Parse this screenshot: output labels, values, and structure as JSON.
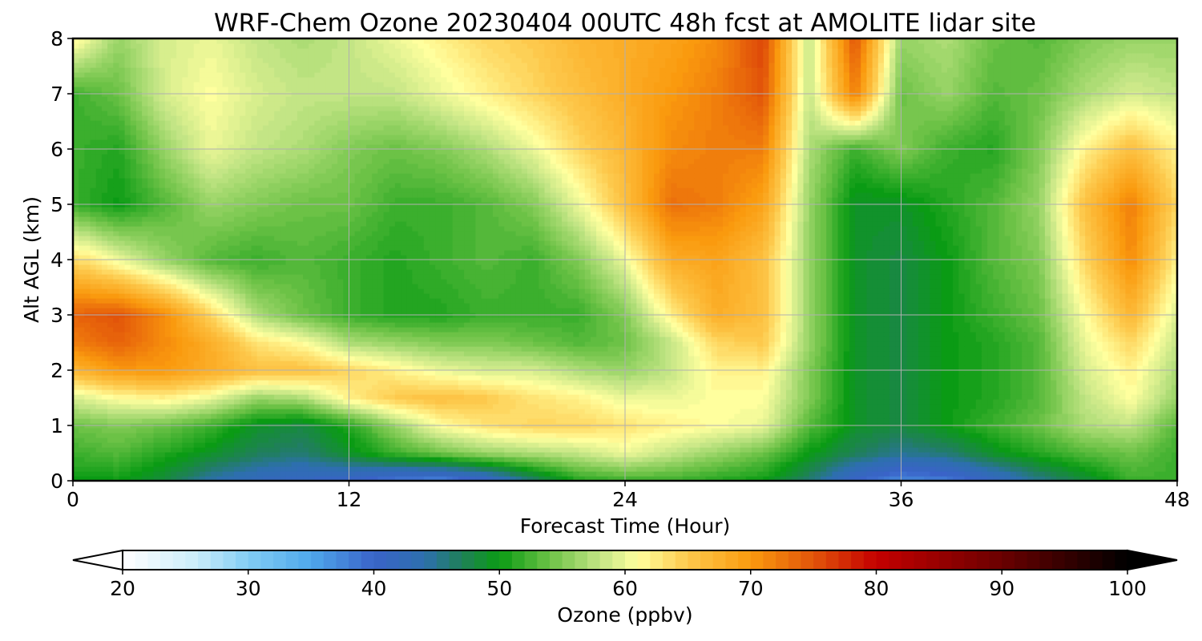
{
  "chart_data": {
    "type": "heatmap",
    "title": "WRF-Chem Ozone  20230404 00UTC 48h fcst at AMOLITE lidar site",
    "xlabel": "Forecast Time (Hour)",
    "ylabel": "Alt AGL (km)",
    "xlim": [
      0,
      48
    ],
    "ylim": [
      0,
      8
    ],
    "xticks": [
      0,
      12,
      24,
      36,
      48
    ],
    "yticks": [
      0,
      1,
      2,
      3,
      4,
      5,
      6,
      7,
      8
    ],
    "grid": true,
    "x_hours": [
      0,
      2,
      4,
      6,
      8,
      10,
      12,
      14,
      16,
      18,
      20,
      22,
      24,
      26,
      28,
      30,
      32,
      34,
      36,
      38,
      40,
      42,
      44,
      46,
      48
    ],
    "y_km": [
      0,
      0.5,
      1,
      1.5,
      2,
      2.5,
      3,
      4,
      5,
      6,
      7,
      8
    ],
    "ozone_ppbv": [
      [
        50,
        50,
        48,
        44,
        42,
        41,
        40,
        38,
        37,
        40,
        46,
        51,
        52,
        52,
        51,
        50,
        46,
        40,
        37,
        38,
        41,
        45,
        48,
        52,
        52
      ],
      [
        52,
        53,
        51,
        49,
        47,
        46,
        49,
        52,
        54,
        56,
        57,
        58,
        60,
        58,
        56,
        54,
        50,
        47,
        45,
        46,
        49,
        51,
        53,
        54,
        52
      ],
      [
        54,
        55,
        54,
        52,
        49,
        48,
        51,
        56,
        61,
        63,
        64,
        64,
        63,
        62,
        61,
        60,
        53,
        49,
        48,
        50,
        52,
        54,
        57,
        58,
        53
      ],
      [
        59,
        61,
        62,
        60,
        56,
        57,
        62,
        65,
        66,
        65,
        63,
        62,
        60,
        60,
        61,
        61,
        55,
        49,
        48,
        50,
        51,
        53,
        58,
        61,
        56
      ],
      [
        67,
        70,
        70,
        68,
        66,
        66,
        64,
        62,
        60,
        59,
        59,
        57,
        56,
        58,
        62,
        62,
        55,
        49,
        48,
        50,
        51,
        53,
        59,
        62,
        57
      ],
      [
        72,
        74,
        71,
        68,
        63,
        61,
        57,
        56,
        55,
        55,
        54,
        53,
        54,
        58,
        64,
        65,
        56,
        49,
        48,
        50,
        51,
        53,
        60,
        64,
        58
      ],
      [
        74,
        75,
        71,
        64,
        57,
        54,
        52,
        51,
        51,
        52,
        52,
        52,
        55,
        62,
        68,
        66,
        56,
        49,
        48,
        50,
        52,
        54,
        61,
        67,
        59
      ],
      [
        64,
        60,
        56,
        53,
        52,
        53,
        52,
        51,
        52,
        53,
        52,
        55,
        60,
        68,
        69,
        66,
        56,
        49,
        48,
        50,
        53,
        55,
        64,
        71,
        62
      ],
      [
        52,
        50,
        53,
        56,
        55,
        54,
        54,
        52,
        52,
        53,
        55,
        60,
        66,
        73,
        72,
        69,
        56,
        49,
        49,
        51,
        53,
        56,
        66,
        72,
        64
      ],
      [
        52,
        51,
        56,
        60,
        58,
        57,
        55,
        54,
        55,
        57,
        60,
        64,
        67,
        71,
        72,
        72,
        57,
        52,
        55,
        52,
        51,
        55,
        62,
        66,
        62
      ],
      [
        52,
        54,
        59,
        61,
        59,
        58,
        58,
        58,
        60,
        62,
        64,
        66,
        68,
        70,
        72,
        75,
        58,
        72,
        54,
        56,
        53,
        54,
        57,
        59,
        58
      ],
      [
        62,
        56,
        59,
        60,
        58,
        57,
        58,
        60,
        62,
        64,
        65,
        67,
        68,
        69,
        71,
        76,
        58,
        75,
        56,
        57,
        54,
        53,
        55,
        56,
        56
      ]
    ],
    "colorbar": {
      "label": "Ozone  (ppbv)",
      "ticks": [
        20,
        30,
        40,
        50,
        60,
        70,
        80,
        90,
        100
      ],
      "range": [
        20,
        100
      ],
      "extend": "both",
      "colors": [
        {
          "v": 20,
          "c": "#ffffff"
        },
        {
          "v": 26,
          "c": "#c9ecfa"
        },
        {
          "v": 30,
          "c": "#82cdf4"
        },
        {
          "v": 35,
          "c": "#4fa8ec"
        },
        {
          "v": 40,
          "c": "#3a63c8"
        },
        {
          "v": 44,
          "c": "#2d6fae"
        },
        {
          "v": 47,
          "c": "#1f8058"
        },
        {
          "v": 50,
          "c": "#0a9b14"
        },
        {
          "v": 54,
          "c": "#6cc246"
        },
        {
          "v": 58,
          "c": "#c3e585"
        },
        {
          "v": 61,
          "c": "#ffff9e"
        },
        {
          "v": 65,
          "c": "#fdc94c"
        },
        {
          "v": 70,
          "c": "#fa9a0e"
        },
        {
          "v": 75,
          "c": "#e2540a"
        },
        {
          "v": 80,
          "c": "#c40000"
        },
        {
          "v": 90,
          "c": "#6a0000"
        },
        {
          "v": 100,
          "c": "#000000"
        }
      ]
    }
  }
}
